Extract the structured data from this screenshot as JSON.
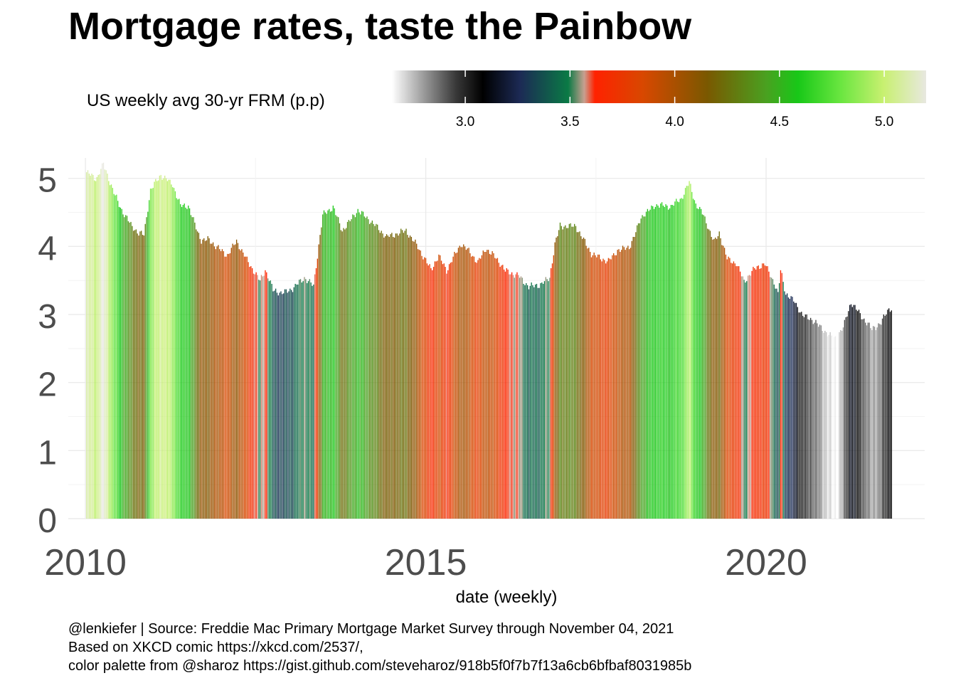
{
  "chart_data": {
    "type": "bar",
    "title": "Mortgage rates, taste the Painbow",
    "xlabel": "date (weekly)",
    "ylabel": "",
    "legend_title": "US weekly avg 30-yr FRM (p.p)",
    "legend_ticks": [
      "3.0",
      "3.5",
      "4.0",
      "4.5",
      "5.0"
    ],
    "legend_range": [
      2.65,
      5.2
    ],
    "legend_placement": "top",
    "x_ticks": [
      "2010",
      "2015",
      "2020"
    ],
    "y_ticks": [
      "0",
      "1",
      "2",
      "3",
      "4",
      "5"
    ],
    "xlim": [
      "2009-10-01",
      "2022-05-01"
    ],
    "ylim": [
      0,
      5.3
    ],
    "grid": true,
    "x_start": "2010-01-07",
    "x_end": "2021-11-04",
    "frequency": "weekly",
    "series_keyframes": [
      [
        "2010-01-07",
        5.09
      ],
      [
        "2010-03-01",
        4.99
      ],
      [
        "2010-04-08",
        5.21
      ],
      [
        "2010-05-06",
        5.0
      ],
      [
        "2010-06-03",
        4.79
      ],
      [
        "2010-07-08",
        4.57
      ],
      [
        "2010-08-05",
        4.44
      ],
      [
        "2010-09-02",
        4.32
      ],
      [
        "2010-10-14",
        4.19
      ],
      [
        "2010-11-11",
        4.17
      ],
      [
        "2010-12-16",
        4.83
      ],
      [
        "2011-02-10",
        5.05
      ],
      [
        "2011-04-14",
        4.91
      ],
      [
        "2011-05-26",
        4.6
      ],
      [
        "2011-07-07",
        4.6
      ],
      [
        "2011-08-11",
        4.32
      ],
      [
        "2011-09-15",
        4.09
      ],
      [
        "2011-10-27",
        4.1
      ],
      [
        "2011-12-01",
        4.0
      ],
      [
        "2012-02-02",
        3.87
      ],
      [
        "2012-03-22",
        4.08
      ],
      [
        "2012-05-10",
        3.83
      ],
      [
        "2012-07-26",
        3.49
      ],
      [
        "2012-08-23",
        3.66
      ],
      [
        "2012-10-04",
        3.36
      ],
      [
        "2012-11-22",
        3.31
      ],
      [
        "2013-01-17",
        3.38
      ],
      [
        "2013-03-21",
        3.54
      ],
      [
        "2013-05-09",
        3.42
      ],
      [
        "2013-06-27",
        4.46
      ],
      [
        "2013-08-22",
        4.58
      ],
      [
        "2013-10-10",
        4.23
      ],
      [
        "2014-01-02",
        4.53
      ],
      [
        "2014-03-13",
        4.37
      ],
      [
        "2014-06-05",
        4.14
      ],
      [
        "2014-09-18",
        4.23
      ],
      [
        "2014-11-20",
        3.99
      ],
      [
        "2015-01-29",
        3.66
      ],
      [
        "2015-03-12",
        3.86
      ],
      [
        "2015-04-23",
        3.65
      ],
      [
        "2015-07-09",
        4.04
      ],
      [
        "2015-09-03",
        3.89
      ],
      [
        "2015-10-08",
        3.76
      ],
      [
        "2015-11-19",
        3.97
      ],
      [
        "2016-01-21",
        3.81
      ],
      [
        "2016-03-03",
        3.64
      ],
      [
        "2016-05-12",
        3.57
      ],
      [
        "2016-07-07",
        3.41
      ],
      [
        "2016-09-08",
        3.44
      ],
      [
        "2016-10-27",
        3.54
      ],
      [
        "2016-11-24",
        4.03
      ],
      [
        "2016-12-22",
        4.3
      ],
      [
        "2017-03-16",
        4.3
      ],
      [
        "2017-06-08",
        3.89
      ],
      [
        "2017-09-07",
        3.78
      ],
      [
        "2017-10-26",
        3.94
      ],
      [
        "2017-12-28",
        3.99
      ],
      [
        "2018-01-25",
        4.15
      ],
      [
        "2018-03-01",
        4.43
      ],
      [
        "2018-05-17",
        4.61
      ],
      [
        "2018-08-09",
        4.59
      ],
      [
        "2018-10-04",
        4.71
      ],
      [
        "2018-11-15",
        4.94
      ],
      [
        "2018-12-20",
        4.62
      ],
      [
        "2019-01-31",
        4.46
      ],
      [
        "2019-03-28",
        4.06
      ],
      [
        "2019-04-25",
        4.2
      ],
      [
        "2019-06-06",
        3.82
      ],
      [
        "2019-07-25",
        3.75
      ],
      [
        "2019-09-05",
        3.49
      ],
      [
        "2019-11-07",
        3.69
      ],
      [
        "2019-12-26",
        3.74
      ],
      [
        "2020-02-13",
        3.47
      ],
      [
        "2020-03-05",
        3.29
      ],
      [
        "2020-03-19",
        3.65
      ],
      [
        "2020-04-16",
        3.31
      ],
      [
        "2020-06-04",
        3.18
      ],
      [
        "2020-07-16",
        2.98
      ],
      [
        "2020-09-03",
        2.93
      ],
      [
        "2020-10-22",
        2.8
      ],
      [
        "2020-12-17",
        2.67
      ],
      [
        "2021-01-07",
        2.65
      ],
      [
        "2021-02-18",
        2.81
      ],
      [
        "2021-04-01",
        3.18
      ],
      [
        "2021-05-20",
        3.0
      ],
      [
        "2021-07-22",
        2.78
      ],
      [
        "2021-09-09",
        2.88
      ],
      [
        "2021-10-21",
        3.09
      ],
      [
        "2021-11-04",
        3.09
      ]
    ]
  },
  "caption": [
    "@lenkiefer | Source: Freddie Mac Primary Mortgage Market Survey through November 04, 2021",
    "Based on XKCD comic https://xkcd.com/2537/,",
    "color palette from @sharoz https://gist.github.com/steveharoz/918b5f0f7b7f13a6cb6bfbaf8031985b"
  ],
  "palette": [
    "#e6e6e6",
    "#808080",
    "#000000",
    "#1c2a55",
    "#0a7a45",
    "#ff2200",
    "#d84800",
    "#7a5800",
    "#58a020",
    "#22c822",
    "#6ae640",
    "#c8f070",
    "#e8e8e0"
  ]
}
